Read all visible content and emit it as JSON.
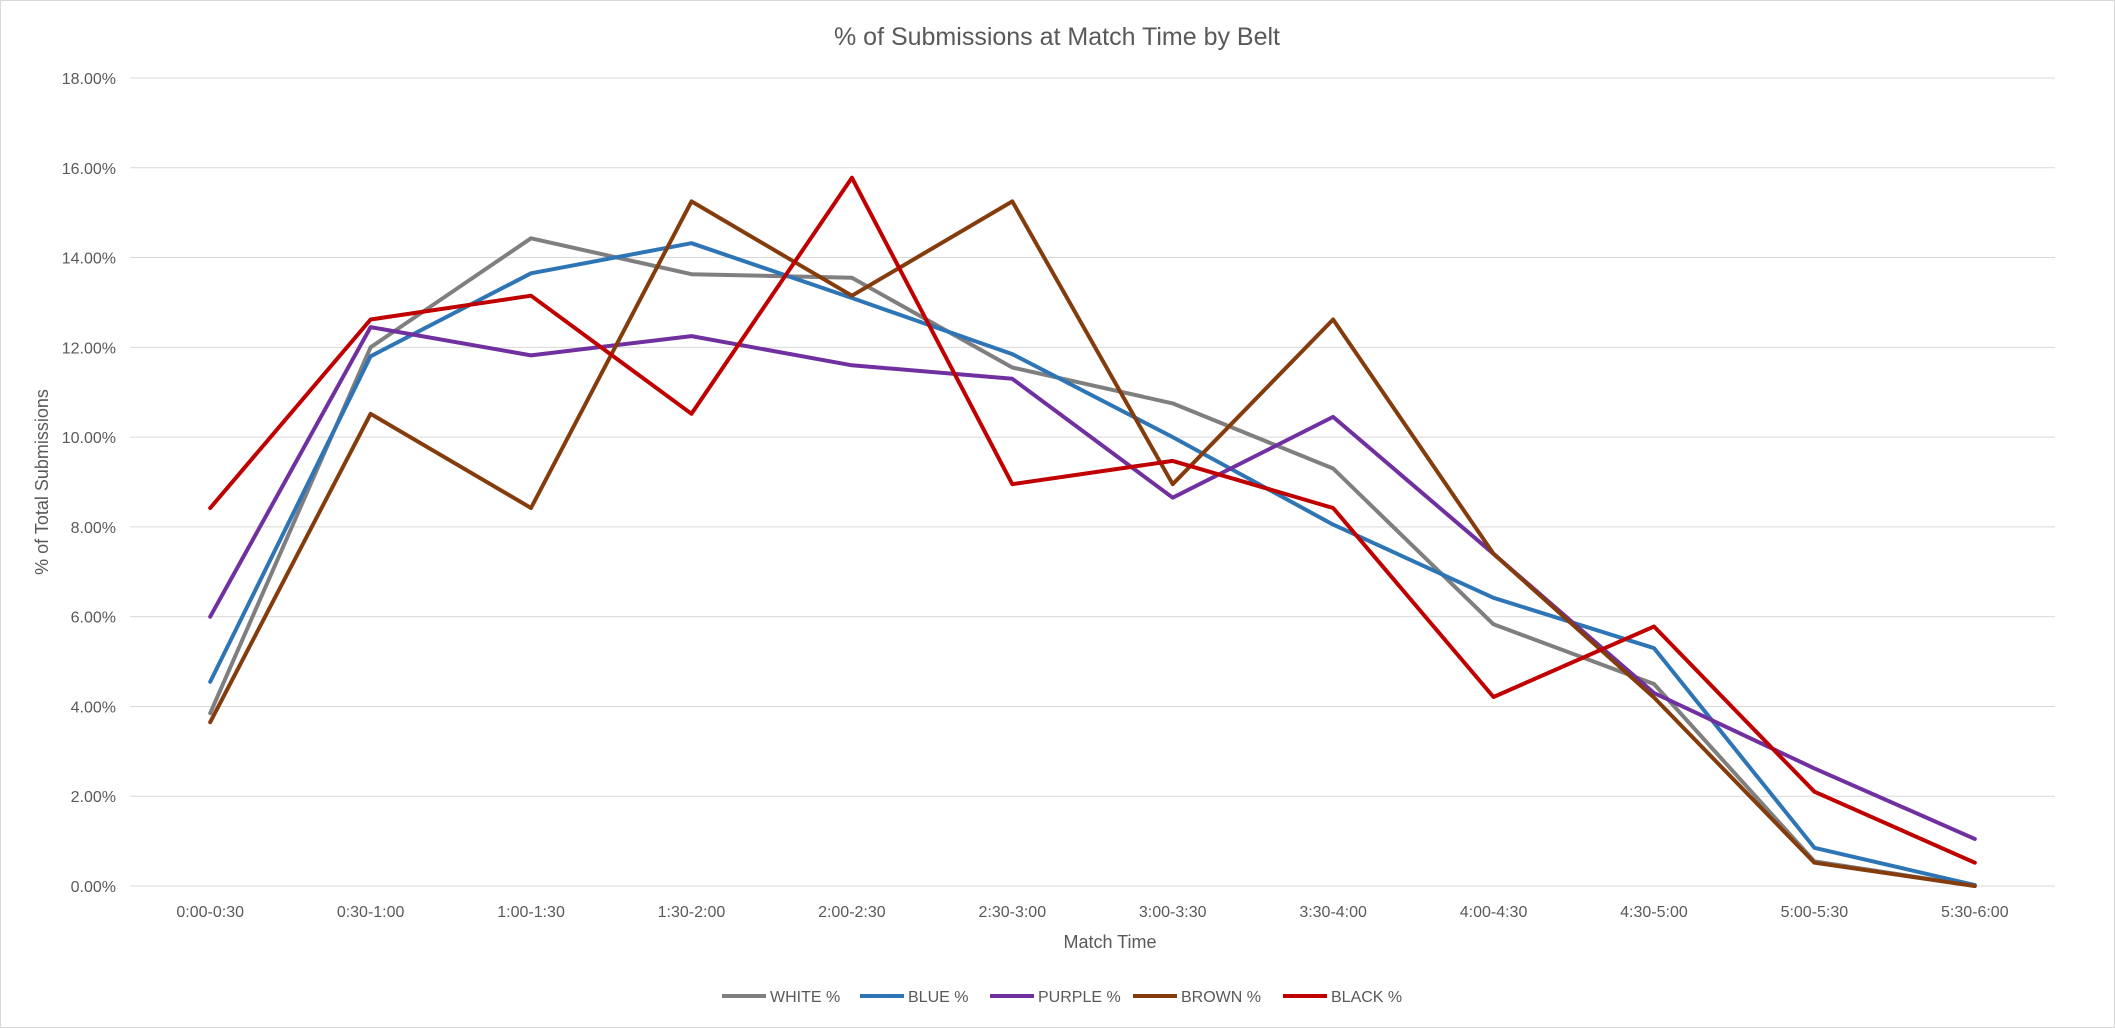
{
  "chart_data": {
    "type": "line",
    "title": "% of Submissions  at Match Time by Belt",
    "xlabel": "Match Time",
    "ylabel": "% of Total Submissions",
    "categories": [
      "0:00-0:30",
      "0:30-1:00",
      "1:00-1:30",
      "1:30-2:00",
      "2:00-2:30",
      "2:30-3:00",
      "3:00-3:30",
      "3:30-4:00",
      "4:00-4:30",
      "4:30-5:00",
      "5:00-5:30",
      "5:30-6:00"
    ],
    "ylim": [
      0,
      18
    ],
    "yticks": [
      "0.00%",
      "2.00%",
      "4.00%",
      "6.00%",
      "8.00%",
      "10.00%",
      "12.00%",
      "14.00%",
      "16.00%",
      "18.00%"
    ],
    "grid": "horizontal",
    "legend_position": "bottom",
    "series": [
      {
        "name": "WHITE %",
        "color": "#7f7f7f",
        "values": [
          3.85,
          12.0,
          14.43,
          13.63,
          13.55,
          11.55,
          10.75,
          9.3,
          5.83,
          4.5,
          0.55,
          0.0
        ]
      },
      {
        "name": "BLUE %",
        "color": "#2e75b6",
        "values": [
          4.55,
          11.8,
          13.65,
          14.32,
          13.1,
          11.85,
          10.0,
          8.05,
          6.42,
          5.3,
          0.85,
          0.02
        ]
      },
      {
        "name": "PURPLE %",
        "color": "#7030a0",
        "values": [
          6.0,
          12.45,
          11.82,
          12.25,
          11.6,
          11.3,
          8.65,
          10.45,
          7.4,
          4.3,
          2.62,
          1.05
        ]
      },
      {
        "name": "BROWN %",
        "color": "#843c0c",
        "values": [
          3.65,
          10.52,
          8.42,
          15.25,
          13.15,
          15.25,
          8.95,
          12.62,
          7.4,
          4.2,
          0.52,
          0.0
        ]
      },
      {
        "name": "BLACK %",
        "color": "#c00000",
        "values": [
          8.42,
          12.62,
          13.15,
          10.52,
          15.78,
          8.95,
          9.47,
          8.42,
          4.21,
          5.78,
          2.1,
          0.52
        ]
      }
    ]
  }
}
